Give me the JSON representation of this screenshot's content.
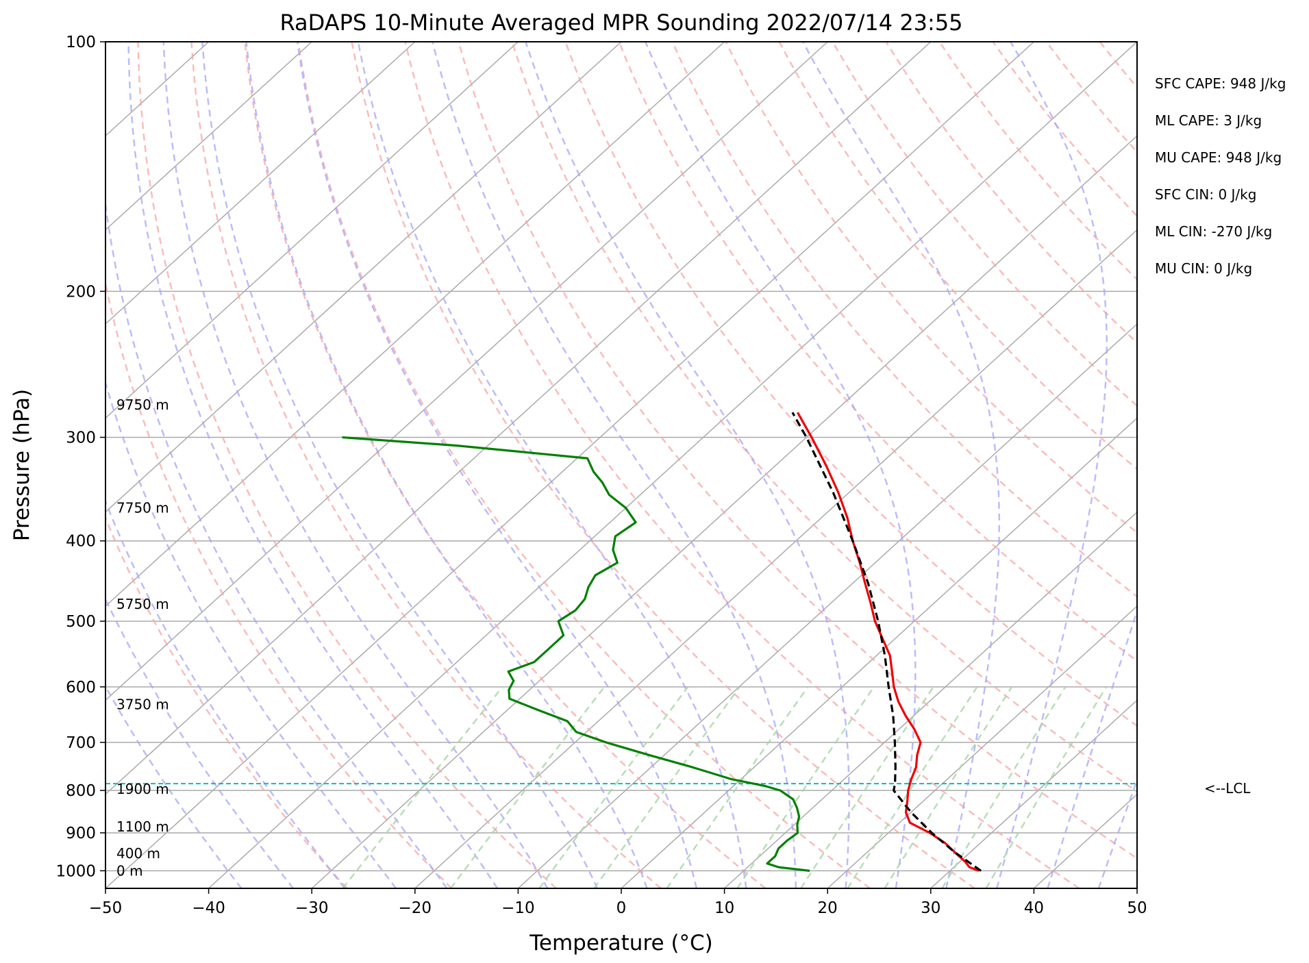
{
  "chart_data": {
    "type": "line",
    "title": "RaDAPS 10-Minute Averaged MPR Sounding 2022/07/14 23:55",
    "xlabel": "Temperature (°C)",
    "ylabel": "Pressure (hPa)",
    "xlim": [
      -50,
      50
    ],
    "ylim": [
      1050,
      100
    ],
    "y_scale": "log",
    "skew_factor": 0.9,
    "x_ticks": [
      -50,
      -40,
      -30,
      -20,
      -10,
      0,
      10,
      20,
      30,
      40,
      50
    ],
    "x_tick_labels": [
      "−50",
      "−40",
      "−30",
      "−20",
      "−10",
      "0",
      "10",
      "20",
      "30",
      "40",
      "50"
    ],
    "y_ticks": [
      100,
      200,
      300,
      400,
      500,
      600,
      700,
      800,
      900,
      1000
    ],
    "y_tick_labels": [
      "100",
      "200",
      "300",
      "400",
      "500",
      "600",
      "700",
      "800",
      "900",
      "1000"
    ],
    "grid": true,
    "colors": {
      "temperature": "#ee0000",
      "dewpoint": "#008000",
      "parcel": "#000000",
      "lcl": "#00bfbf",
      "dry_adiabat": "#f7a5a5",
      "moist_adiabat": "#a5a5f7",
      "mixing_ratio": "#a5d6a5",
      "isotherm": "#aaaaaa"
    },
    "series": [
      {
        "role": "temperature",
        "points": [
          [
            1000,
            32.8
          ],
          [
            990,
            31.5
          ],
          [
            975,
            30.5
          ],
          [
            950,
            28.5
          ],
          [
            925,
            26.5
          ],
          [
            900,
            24.0
          ],
          [
            875,
            21.0
          ],
          [
            850,
            19.5
          ],
          [
            825,
            18.5
          ],
          [
            800,
            17.4
          ],
          [
            775,
            16.5
          ],
          [
            750,
            15.7
          ],
          [
            725,
            14.5
          ],
          [
            700,
            13.5
          ],
          [
            675,
            11.5
          ],
          [
            650,
            9.2
          ],
          [
            625,
            7.0
          ],
          [
            600,
            5.0
          ],
          [
            575,
            3.2
          ],
          [
            550,
            1.3
          ],
          [
            525,
            -1.2
          ],
          [
            500,
            -3.8
          ],
          [
            475,
            -6.2
          ],
          [
            450,
            -8.8
          ],
          [
            425,
            -11.5
          ],
          [
            400,
            -14.5
          ],
          [
            375,
            -17.5
          ],
          [
            350,
            -21.0
          ],
          [
            325,
            -25.0
          ],
          [
            300,
            -29.5
          ],
          [
            280,
            -33.5
          ]
        ]
      },
      {
        "role": "dewpoint",
        "points": [
          [
            1000,
            16.4
          ],
          [
            990,
            13.0
          ],
          [
            980,
            11.5
          ],
          [
            960,
            11.5
          ],
          [
            940,
            11.0
          ],
          [
            920,
            11.0
          ],
          [
            900,
            11.2
          ],
          [
            880,
            10.3
          ],
          [
            860,
            9.6
          ],
          [
            840,
            8.5
          ],
          [
            820,
            7.2
          ],
          [
            800,
            5.0
          ],
          [
            790,
            3.0
          ],
          [
            775,
            -1.0
          ],
          [
            750,
            -6.0
          ],
          [
            725,
            -11.5
          ],
          [
            700,
            -17.0
          ],
          [
            680,
            -21.0
          ],
          [
            660,
            -23.0
          ],
          [
            640,
            -27.0
          ],
          [
            620,
            -31.0
          ],
          [
            605,
            -32.0
          ],
          [
            590,
            -32.5
          ],
          [
            575,
            -34.0
          ],
          [
            560,
            -32.5
          ],
          [
            540,
            -32.5
          ],
          [
            520,
            -32.5
          ],
          [
            500,
            -34.5
          ],
          [
            485,
            -34.0
          ],
          [
            470,
            -34.3
          ],
          [
            455,
            -35.2
          ],
          [
            440,
            -35.8
          ],
          [
            425,
            -35.0
          ],
          [
            410,
            -36.8
          ],
          [
            395,
            -38.0
          ],
          [
            380,
            -37.5
          ],
          [
            365,
            -40.0
          ],
          [
            352,
            -43.0
          ],
          [
            340,
            -45.0
          ],
          [
            330,
            -47.0
          ],
          [
            318,
            -49.0
          ],
          [
            307,
            -63.0
          ],
          [
            300,
            -75.0
          ]
        ]
      },
      {
        "role": "parcel",
        "points": [
          [
            1000,
            33.0
          ],
          [
            950,
            28.5
          ],
          [
            900,
            24.2
          ],
          [
            850,
            20.0
          ],
          [
            800,
            16.0
          ],
          [
            785,
            15.4
          ],
          [
            750,
            13.7
          ],
          [
            700,
            11.0
          ],
          [
            650,
            8.0
          ],
          [
            600,
            4.5
          ],
          [
            550,
            0.8
          ],
          [
            500,
            -3.5
          ],
          [
            450,
            -8.5
          ],
          [
            400,
            -14.5
          ],
          [
            350,
            -21.5
          ],
          [
            300,
            -30.0
          ],
          [
            280,
            -34.0
          ]
        ]
      }
    ],
    "lcl": {
      "pressure": 785,
      "label": "<--LCL"
    },
    "height_labels": [
      {
        "pressure": 1000,
        "text": "0 m"
      },
      {
        "pressure": 953,
        "text": "400 m"
      },
      {
        "pressure": 885,
        "text": "1100 m"
      },
      {
        "pressure": 797,
        "text": "1900 m"
      },
      {
        "pressure": 630,
        "text": "3750 m"
      },
      {
        "pressure": 477,
        "text": "5750 m"
      },
      {
        "pressure": 365,
        "text": "7750 m"
      },
      {
        "pressure": 274,
        "text": "9750 m"
      }
    ],
    "stats": [
      "SFC CAPE: 948 J/kg",
      "ML CAPE: 3 J/kg",
      "MU CAPE: 948 J/kg",
      "SFC CIN: 0 J/kg",
      "ML CIN: -270 J/kg",
      "MU CIN: 0 J/kg"
    ]
  }
}
